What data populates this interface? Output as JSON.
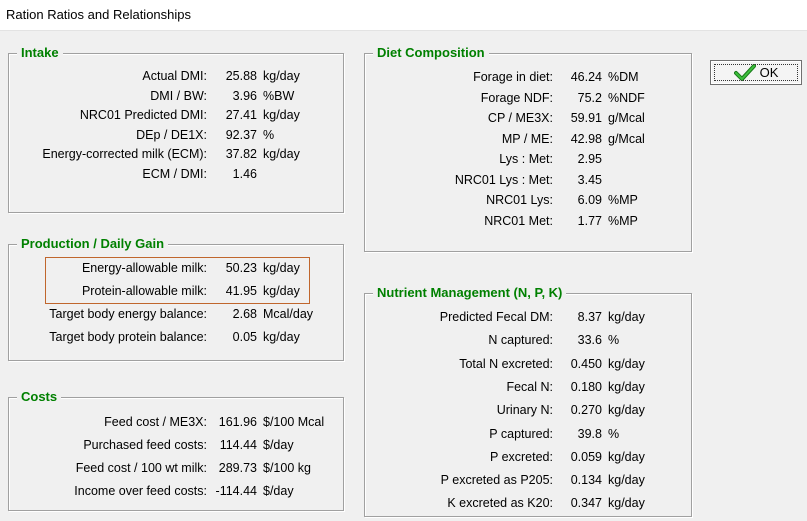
{
  "window": {
    "title": "Ration Ratios and Relationships"
  },
  "ok_button": {
    "label": "OK"
  },
  "intake": {
    "title": "Intake",
    "rows": [
      {
        "label": "Actual DMI:",
        "value": "25.88",
        "unit": "kg/day"
      },
      {
        "label": "DMI / BW:",
        "value": "3.96",
        "unit": "%BW"
      },
      {
        "label": "NRC01 Predicted DMI:",
        "value": "27.41",
        "unit": "kg/day"
      },
      {
        "label": "DEp / DE1X:",
        "value": "92.37",
        "unit": "%"
      },
      {
        "label": "Energy-corrected milk (ECM):",
        "value": "37.82",
        "unit": "kg/day"
      },
      {
        "label": "ECM / DMI:",
        "value": "1.46",
        "unit": ""
      }
    ]
  },
  "production": {
    "title": "Production / Daily Gain",
    "rows": [
      {
        "label": "Energy-allowable milk:",
        "value": "50.23",
        "unit": "kg/day"
      },
      {
        "label": "Protein-allowable milk:",
        "value": "41.95",
        "unit": "kg/day"
      },
      {
        "label": "Target body energy balance:",
        "value": "2.68",
        "unit": "Mcal/day"
      },
      {
        "label": "Target body protein balance:",
        "value": "0.05",
        "unit": "kg/day"
      }
    ]
  },
  "costs": {
    "title": "Costs",
    "rows": [
      {
        "label": "Feed cost / ME3X:",
        "value": "161.96",
        "unit": "$/100 Mcal"
      },
      {
        "label": "Purchased feed costs:",
        "value": "114.44",
        "unit": "$/day"
      },
      {
        "label": "Feed cost / 100 wt milk:",
        "value": "289.73",
        "unit": "$/100 kg"
      },
      {
        "label": "Income over feed costs:",
        "value": "-114.44",
        "unit": "$/day"
      }
    ]
  },
  "diet": {
    "title": "Diet Composition",
    "rows": [
      {
        "label": "Forage in diet:",
        "value": "46.24",
        "unit": "%DM"
      },
      {
        "label": "Forage NDF:",
        "value": "75.2",
        "unit": "%NDF"
      },
      {
        "label": "CP / ME3X:",
        "value": "59.91",
        "unit": "g/Mcal"
      },
      {
        "label": "MP / ME:",
        "value": "42.98",
        "unit": "g/Mcal"
      },
      {
        "label": "Lys : Met:",
        "value": "2.95",
        "unit": ""
      },
      {
        "label": "NRC01 Lys : Met:",
        "value": "3.45",
        "unit": ""
      },
      {
        "label": "NRC01 Lys:",
        "value": "6.09",
        "unit": "%MP"
      },
      {
        "label": "NRC01 Met:",
        "value": "1.77",
        "unit": "%MP"
      }
    ]
  },
  "nutrient": {
    "title": "Nutrient Management (N, P, K)",
    "rows": [
      {
        "label": "Predicted Fecal DM:",
        "value": "8.37",
        "unit": "kg/day"
      },
      {
        "label": "N captured:",
        "value": "33.6",
        "unit": "%"
      },
      {
        "label": "Total N excreted:",
        "value": "0.450",
        "unit": "kg/day"
      },
      {
        "label": "Fecal N:",
        "value": "0.180",
        "unit": "kg/day"
      },
      {
        "label": "Urinary N:",
        "value": "0.270",
        "unit": "kg/day"
      },
      {
        "label": "P captured:",
        "value": "39.8",
        "unit": "%"
      },
      {
        "label": "P excreted:",
        "value": "0.059",
        "unit": "kg/day"
      },
      {
        "label": "P excreted as P205:",
        "value": "0.134",
        "unit": "kg/day"
      },
      {
        "label": "K excreted as K20:",
        "value": "0.347",
        "unit": "kg/day"
      }
    ]
  }
}
